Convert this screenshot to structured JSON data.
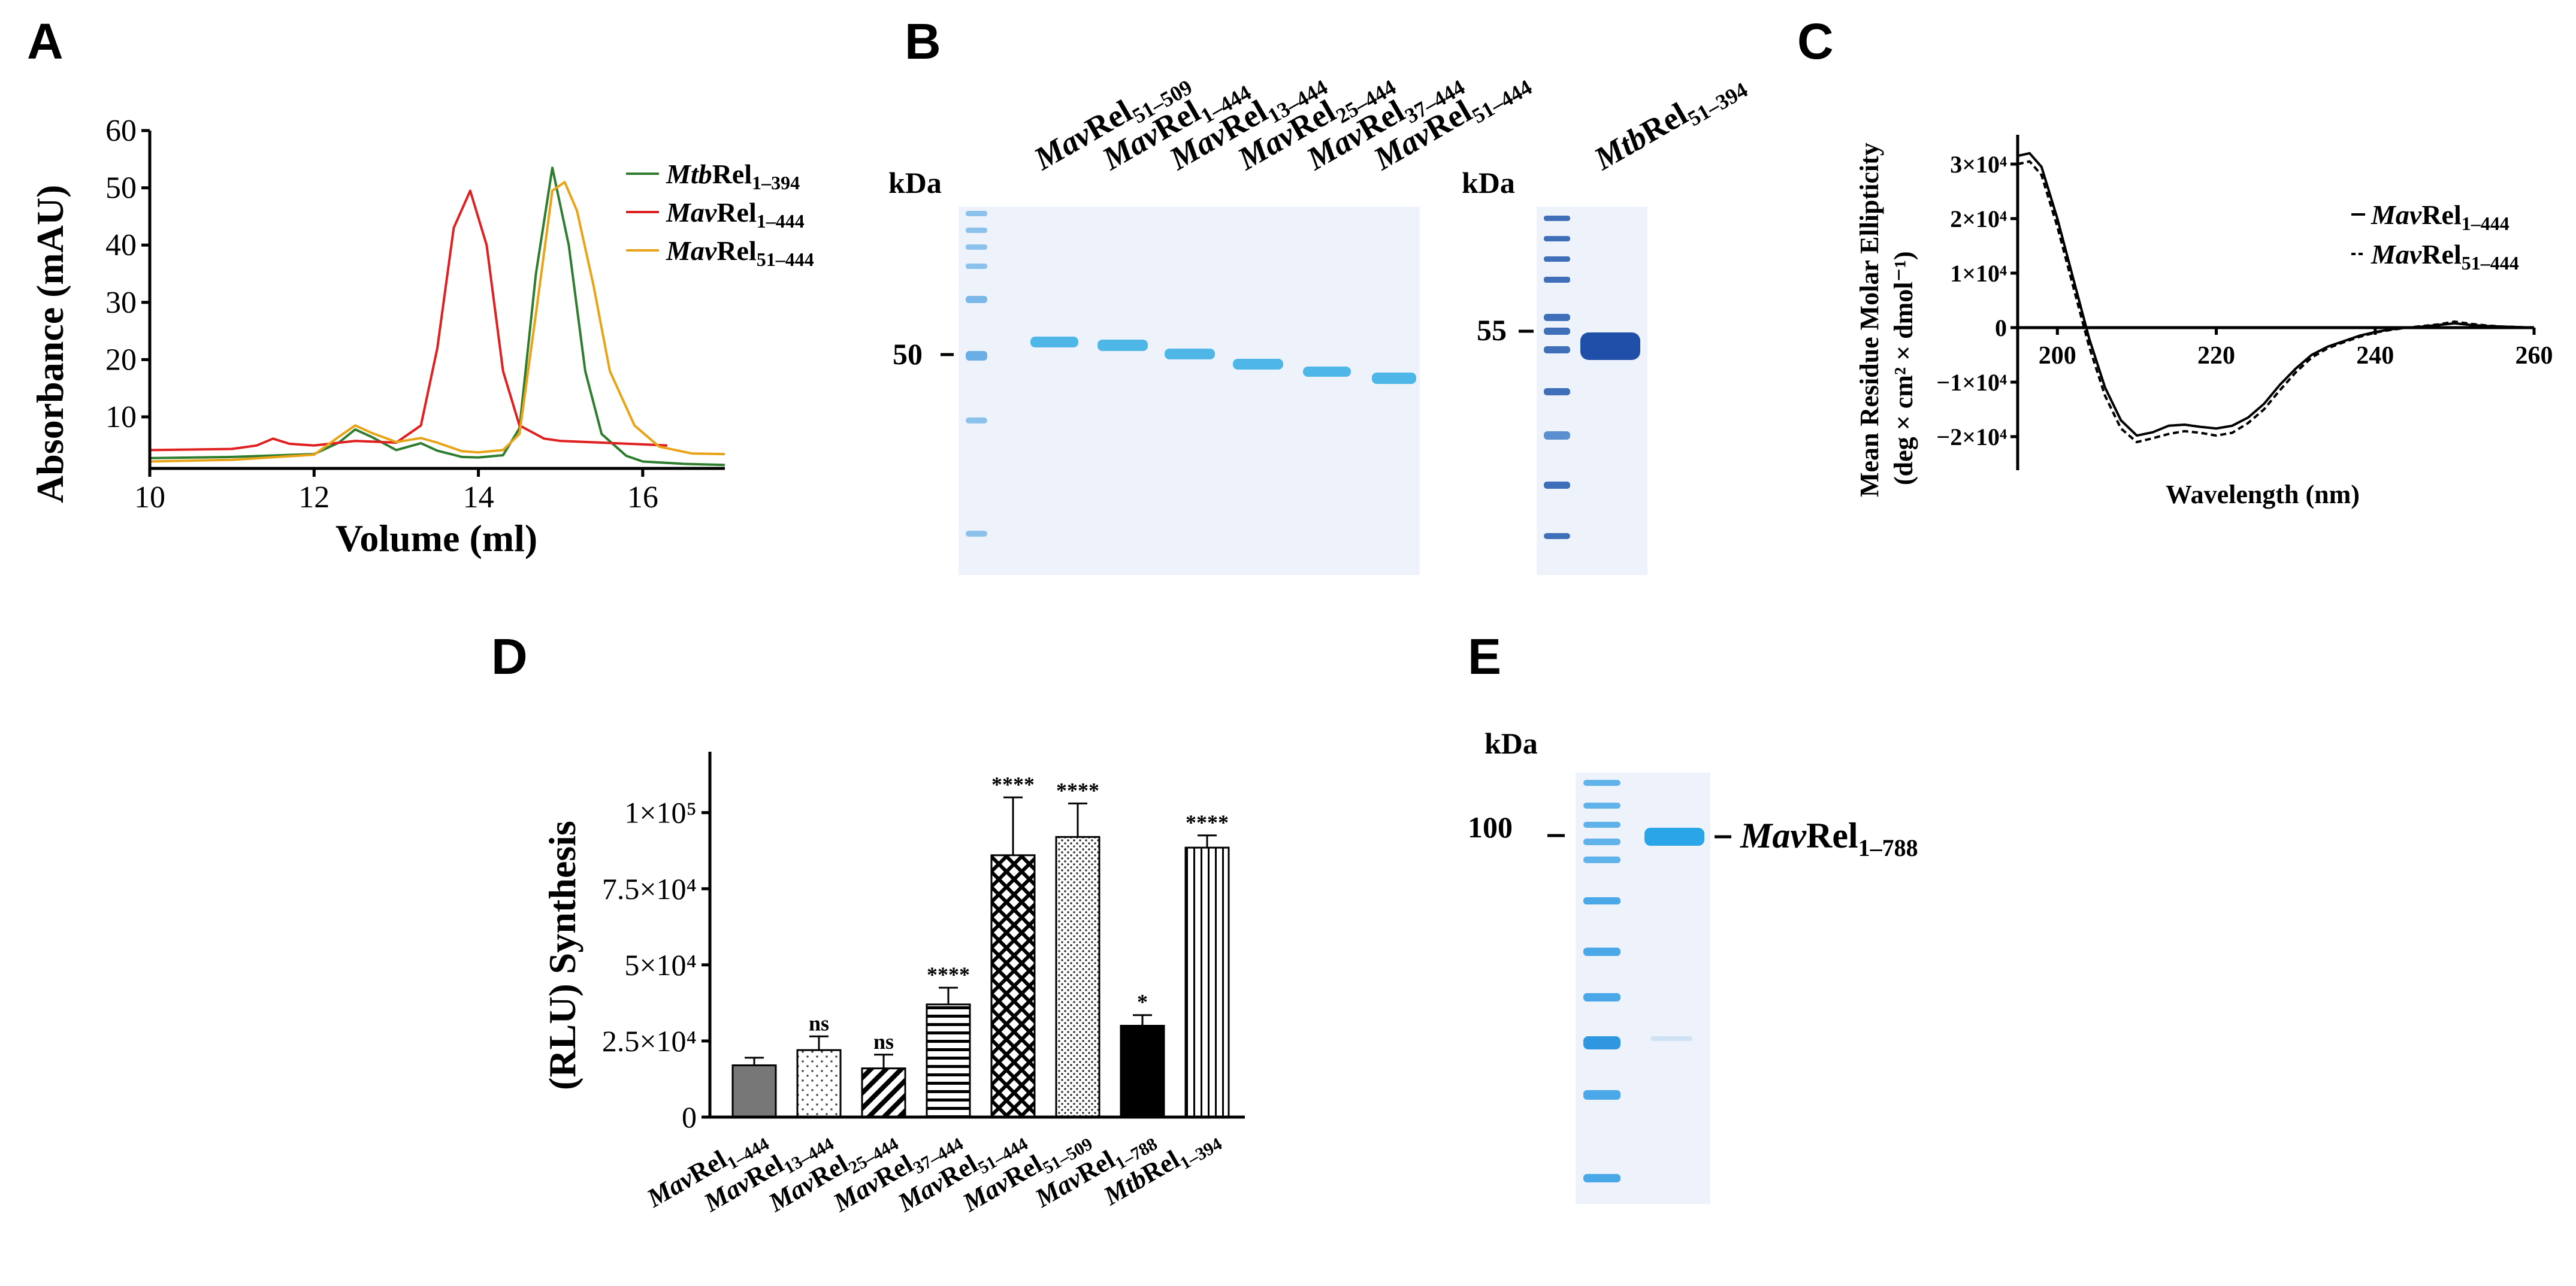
{
  "panel_letters": {
    "a": "A",
    "b": "B",
    "c": "C",
    "d": "D",
    "e": "E"
  },
  "chart_data": [
    {
      "id": "A",
      "type": "line",
      "xlabel": "Volume (ml)",
      "ylabel": "Absorbance (mAU)",
      "xlim": [
        10,
        17
      ],
      "ylim": [
        1,
        60
      ],
      "xticks": [
        10,
        12,
        14,
        16
      ],
      "yticks": [
        10,
        20,
        30,
        40,
        50,
        60
      ],
      "xtick_labels": [
        "10",
        "12",
        "14",
        "16"
      ],
      "ytick_labels": [
        "10",
        "20",
        "30",
        "40",
        "50",
        "60"
      ],
      "series": [
        {
          "name": "MtbRel1–394",
          "name_parts": {
            "italic": "Mtb",
            "roman": "Rel",
            "sub": "1–394"
          },
          "color": "#2e7d2e",
          "x": [
            10,
            11,
            12,
            12.3,
            12.5,
            12.7,
            13,
            13.3,
            13.5,
            13.8,
            14,
            14.3,
            14.5,
            14.7,
            14.9,
            15.1,
            15.3,
            15.5,
            15.8,
            16,
            16.5,
            17
          ],
          "y": [
            2.8,
            3.0,
            3.5,
            5.5,
            7.8,
            6.5,
            4.2,
            5.4,
            4.1,
            3.0,
            2.9,
            3.3,
            8.0,
            35,
            53.5,
            40,
            18,
            7,
            3.2,
            2.2,
            1.8,
            1.6
          ]
        },
        {
          "name": "MavRel1–444",
          "name_parts": {
            "italic": "Mav",
            "roman": "Rel",
            "sub": "1–444"
          },
          "color": "#e02020",
          "x": [
            10,
            11,
            11.3,
            11.5,
            11.7,
            12,
            12.5,
            13,
            13.3,
            13.5,
            13.7,
            13.9,
            14.1,
            14.3,
            14.5,
            14.8,
            15,
            15.5,
            16,
            16.3
          ],
          "y": [
            4.2,
            4.4,
            5.0,
            6.2,
            5.3,
            5.0,
            5.8,
            5.5,
            8.5,
            22,
            43,
            49.5,
            40,
            18,
            8.5,
            6.2,
            5.8,
            5.5,
            5.2,
            5.0
          ]
        },
        {
          "name": "MavRel51–444",
          "name_parts": {
            "italic": "Mav",
            "roman": "Rel",
            "sub": "51–444"
          },
          "color": "#e8a317",
          "x": [
            10,
            11,
            12,
            12.3,
            12.5,
            12.7,
            13,
            13.3,
            13.5,
            13.8,
            14,
            14.3,
            14.5,
            14.7,
            14.9,
            15.05,
            15.2,
            15.4,
            15.6,
            15.9,
            16.2,
            16.6,
            17
          ],
          "y": [
            2.2,
            2.5,
            3.4,
            6.5,
            8.5,
            7.2,
            5.6,
            6.3,
            5.5,
            4.0,
            3.8,
            4.2,
            7.0,
            28,
            49.5,
            51,
            46,
            33,
            18,
            8.5,
            4.8,
            3.6,
            3.5
          ]
        }
      ]
    },
    {
      "id": "C",
      "type": "line",
      "xlabel": "Wavelength (nm)",
      "ylabel_line1": "Mean Residue Molar Ellipticity",
      "ylabel_line2": "(deg × cm² × dmol⁻¹)",
      "xlim": [
        195,
        260
      ],
      "ylim": [
        -25000,
        35000
      ],
      "xticks": [
        200,
        220,
        240,
        260
      ],
      "xtick_labels": [
        "200",
        "220",
        "240",
        "260"
      ],
      "yticks": [
        30000,
        20000,
        10000,
        0,
        -10000,
        -20000
      ],
      "ytick_labels": [
        "3×10⁴",
        "2×10⁴",
        "1×10⁴",
        "0",
        "−1×10⁴",
        "−2×10⁴"
      ],
      "series": [
        {
          "name": "MavRel1–444",
          "name_parts": {
            "italic": "Mav",
            "roman": "Rel",
            "sub": "1–444"
          },
          "style": "solid",
          "color": "#000000",
          "x": [
            195,
            196.5,
            198,
            200,
            202,
            204,
            206,
            208,
            210,
            212,
            214,
            216,
            218,
            220,
            222,
            224,
            226,
            228,
            230,
            232,
            234,
            236,
            238,
            240,
            242,
            244,
            246,
            248,
            250,
            252,
            254,
            256,
            258,
            260
          ],
          "y": [
            31500,
            32000,
            29500,
            20000,
            9000,
            -2000,
            -11000,
            -17000,
            -19800,
            -19200,
            -18000,
            -17800,
            -18200,
            -18500,
            -18000,
            -16500,
            -14000,
            -10500,
            -7500,
            -5000,
            -3500,
            -2500,
            -1500,
            -800,
            -300,
            0,
            200,
            500,
            800,
            500,
            300,
            200,
            100,
            0
          ]
        },
        {
          "name": "MavRel51–444",
          "name_parts": {
            "italic": "Mav",
            "roman": "Rel",
            "sub": "51–444"
          },
          "style": "dashed",
          "color": "#000000",
          "x": [
            195,
            196.5,
            198,
            200,
            202,
            204,
            206,
            208,
            210,
            212,
            214,
            216,
            218,
            220,
            222,
            224,
            226,
            228,
            230,
            232,
            234,
            236,
            238,
            240,
            242,
            244,
            246,
            248,
            250,
            252,
            254,
            256,
            258,
            260
          ],
          "y": [
            30000,
            30500,
            28000,
            18500,
            7500,
            -3500,
            -12500,
            -18500,
            -21000,
            -20300,
            -19500,
            -19000,
            -19300,
            -19800,
            -19300,
            -17500,
            -15000,
            -11500,
            -8200,
            -5500,
            -3800,
            -2700,
            -1700,
            -900,
            -400,
            0,
            300,
            600,
            1100,
            700,
            400,
            200,
            100,
            0
          ]
        }
      ]
    },
    {
      "id": "D",
      "type": "bar",
      "ylabel": "(RLU) Synthesis",
      "ylim": [
        0,
        120000
      ],
      "yticks": [
        0,
        25000,
        50000,
        75000,
        100000
      ],
      "ytick_labels": [
        "0",
        "2.5×10⁴",
        "5×10⁴",
        "7.5×10⁴",
        "1×10⁵"
      ],
      "categories": [
        "MavRel1–444",
        "MavRel13–444",
        "MavRel25–444",
        "MavRel37–444",
        "MavRel51–444",
        "MavRel51–509",
        "MavRel1–788",
        "MtbRel1–394"
      ],
      "category_parts": [
        {
          "italic": "Mav",
          "roman": "Rel",
          "sub": "1–444"
        },
        {
          "italic": "Mav",
          "roman": "Rel",
          "sub": "13–444"
        },
        {
          "italic": "Mav",
          "roman": "Rel",
          "sub": "25–444"
        },
        {
          "italic": "Mav",
          "roman": "Rel",
          "sub": "37–444"
        },
        {
          "italic": "Mav",
          "roman": "Rel",
          "sub": "51–444"
        },
        {
          "italic": "Mav",
          "roman": "Rel",
          "sub": "51–509"
        },
        {
          "italic": "Mav",
          "roman": "Rel",
          "sub": "1–788"
        },
        {
          "italic": "Mtb",
          "roman": "Rel",
          "sub": "1–394"
        }
      ],
      "values": [
        17000,
        22000,
        16000,
        37000,
        86000,
        92000,
        30000,
        88500
      ],
      "errors": [
        2500,
        4500,
        4500,
        5500,
        19000,
        11000,
        3500,
        4000
      ],
      "significance": [
        "",
        "ns",
        "ns",
        "****",
        "****",
        "****",
        "*",
        "****"
      ],
      "patterns": [
        "solid-gray",
        "dots-sparse",
        "diag",
        "hlines",
        "cross",
        "dots-dense",
        "solid-black",
        "vlines"
      ]
    }
  ],
  "gel_b": {
    "kda_label": "kDa",
    "marker_left": "50",
    "marker_right": "55",
    "lanes": [
      {
        "italic": "Mav",
        "roman": "Rel",
        "sub": "51–509"
      },
      {
        "italic": "Mav",
        "roman": "Rel",
        "sub": "1–444"
      },
      {
        "italic": "Mav",
        "roman": "Rel",
        "sub": "13–444"
      },
      {
        "italic": "Mav",
        "roman": "Rel",
        "sub": "25–444"
      },
      {
        "italic": "Mav",
        "roman": "Rel",
        "sub": "37–444"
      },
      {
        "italic": "Mav",
        "roman": "Rel",
        "sub": "51–444"
      }
    ],
    "right_lane": {
      "italic": "Mtb",
      "roman": "Rel",
      "sub": "51–394"
    }
  },
  "gel_e": {
    "kda_label": "kDa",
    "marker": "100",
    "band_label": {
      "italic": "Mav",
      "roman": "Rel",
      "sub": "1–788"
    }
  },
  "colors": {
    "gel_bg": "#eef3fb",
    "gel_band": "#4fb6e8",
    "gel_band_dark": "#1f4fa8",
    "ladder": "#7bb8ea"
  }
}
